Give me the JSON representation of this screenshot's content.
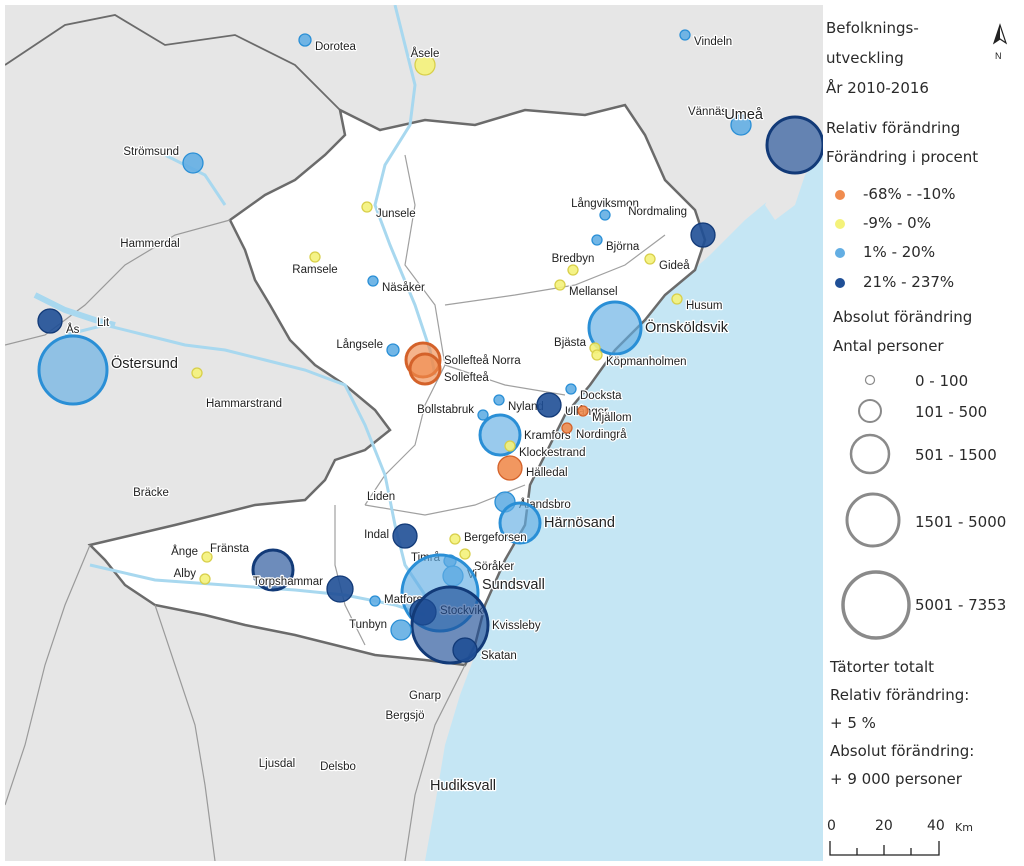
{
  "legend": {
    "title_line1": "Befolknings-",
    "title_line2": "utveckling",
    "title_line3": "År 2010-2016",
    "relative_title": "Relativ förändring",
    "relative_subtitle": "Förändring i procent",
    "classes": [
      {
        "label": "-68% - -10%",
        "color": "#f08c4f"
      },
      {
        "label": "-9% - 0%",
        "color": "#f4f27a"
      },
      {
        "label": "1% - 20%",
        "color": "#63aee3"
      },
      {
        "label": "21% - 237%",
        "color": "#1f4f96"
      }
    ],
    "absolute_title": "Absolut förändring",
    "absolute_subtitle": "Antal personer",
    "size_classes": [
      "0 - 100",
      "101 - 500",
      "501 - 1500",
      "1501 - 5000",
      "5001 - 7353"
    ],
    "totals_title": "Tätorter totalt",
    "totals_relative_label": "Relativ förändring:",
    "totals_relative_value": "+ 5 %",
    "totals_absolute_label": "Absolut förändring:",
    "totals_absolute_value": "+  9 000   personer",
    "scale_ticks": [
      "0",
      "20",
      "40"
    ],
    "scale_unit": "Km",
    "north_label": "N"
  },
  "colors": {
    "sea": "#c5e6f4",
    "land_outside": "#e6e6e6",
    "region": "#ffffff",
    "border": "#6b6b6b",
    "water": "#a8d8ef"
  },
  "places": [
    {
      "name": "Dorotea",
      "cls": 2
    },
    {
      "name": "Åsele",
      "cls": 1
    },
    {
      "name": "Vindeln",
      "cls": 2
    },
    {
      "name": "Strömsund",
      "cls": 2
    },
    {
      "name": "Vännäs",
      "cls": 2
    },
    {
      "name": "Umeå",
      "cls": 3
    },
    {
      "name": "Junsele",
      "cls": 1
    },
    {
      "name": "Långviksmon",
      "cls": 2
    },
    {
      "name": "Hammerdal",
      "cls": 1
    },
    {
      "name": "Björna",
      "cls": 2
    },
    {
      "name": "Nordmaling",
      "cls": 3
    },
    {
      "name": "Gideå",
      "cls": 1
    },
    {
      "name": "Ramsele",
      "cls": 1
    },
    {
      "name": "Näsåker",
      "cls": 2
    },
    {
      "name": "Bredbyn",
      "cls": 1
    },
    {
      "name": "Mellansel",
      "cls": 1
    },
    {
      "name": "Husum",
      "cls": 1
    },
    {
      "name": "Lit",
      "cls": 2
    },
    {
      "name": "Örnsköldsvik",
      "cls": 2
    },
    {
      "name": "Ås",
      "cls": 3
    },
    {
      "name": "Långsele",
      "cls": 2
    },
    {
      "name": "Sollefteå Norra",
      "cls": 0
    },
    {
      "name": "Sollefteå",
      "cls": 0
    },
    {
      "name": "Bjästa",
      "cls": 1
    },
    {
      "name": "Köpmanholmen",
      "cls": 1
    },
    {
      "name": "Östersund",
      "cls": 2
    },
    {
      "name": "Hammarstrand",
      "cls": 1
    },
    {
      "name": "Docksta",
      "cls": 2
    },
    {
      "name": "Nyland",
      "cls": 2
    },
    {
      "name": "Ullånger",
      "cls": 3
    },
    {
      "name": "Bollstabruk",
      "cls": 2
    },
    {
      "name": "Mjällom",
      "cls": 0
    },
    {
      "name": "Kramfors",
      "cls": 2
    },
    {
      "name": "Nordingrå",
      "cls": 0
    },
    {
      "name": "Klockestrand",
      "cls": 1
    },
    {
      "name": "Hälledal",
      "cls": 0
    },
    {
      "name": "Bräcke",
      "cls": 2
    },
    {
      "name": "Liden",
      "cls": 2
    },
    {
      "name": "Ålandsbro",
      "cls": 2
    },
    {
      "name": "Härnösand",
      "cls": 2
    },
    {
      "name": "Indal",
      "cls": 3
    },
    {
      "name": "Bergeforsen",
      "cls": 1
    },
    {
      "name": "Söråker",
      "cls": 1
    },
    {
      "name": "Ånge",
      "cls": 1
    },
    {
      "name": "Fränsta",
      "cls": 3
    },
    {
      "name": "Timrå",
      "cls": 2
    },
    {
      "name": "Vi",
      "cls": 2
    },
    {
      "name": "Alby",
      "cls": 1
    },
    {
      "name": "Torpshammar",
      "cls": 3
    },
    {
      "name": "Sundsvall",
      "cls": 2
    },
    {
      "name": "Matfors",
      "cls": 2
    },
    {
      "name": "Stockvik",
      "cls": 3
    },
    {
      "name": "Kvissleby",
      "cls": 3
    },
    {
      "name": "Tunbyn",
      "cls": 2
    },
    {
      "name": "Skatan",
      "cls": 3
    },
    {
      "name": "Gnarp",
      "cls": 2
    },
    {
      "name": "Bergsjö",
      "cls": 2
    },
    {
      "name": "Ljusdal",
      "cls": 2
    },
    {
      "name": "Delsbo",
      "cls": 2
    },
    {
      "name": "Hudiksvall",
      "cls": 2
    }
  ]
}
